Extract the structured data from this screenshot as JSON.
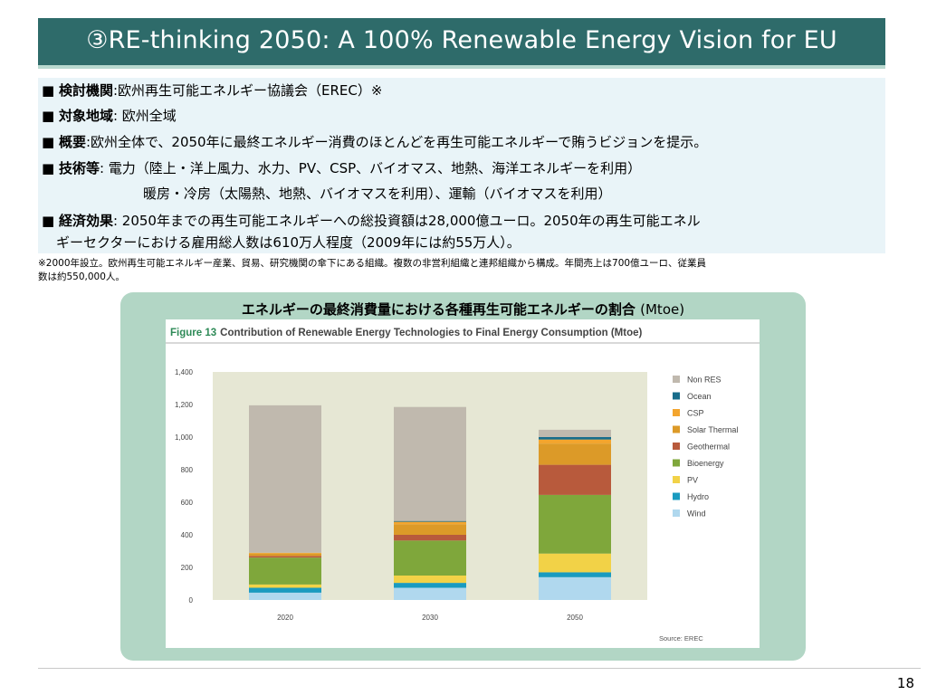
{
  "header": {
    "title": "③RE-thinking 2050:  A 100% Renewable Energy Vision for EU"
  },
  "bullets": [
    {
      "label": "検討機関",
      "sep": ":",
      "text": "欧州再生可能エネルギー協議会（EREC）※"
    },
    {
      "label": "対象地域",
      "sep": ": ",
      "text": "欧州全域"
    },
    {
      "label": "概要",
      "sep": ":",
      "text": "欧州全体で、2050年に最終エネルギー消費のほとんどを再生可能エネルギーで賄うビジョンを提示。"
    },
    {
      "label": "技術等",
      "sep": ": ",
      "text": "電力（陸上・洋上風力、水力、PV、CSP、バイオマス、地熱、海洋エネルギーを利用）",
      "text2": "暖房・冷房（太陽熱、地熱、バイオマスを利用）、運輸（バイオマスを利用）"
    },
    {
      "label": "経済効果",
      "sep": ": ",
      "text": "2050年までの再生可能エネルギーへの総投資額は28,000億ユーロ。2050年の再生可能エネル",
      "text2": "ギーセクターにおける雇用総人数は610万人程度（2009年には約55万人）。"
    }
  ],
  "note": {
    "line1": "※2000年設立。欧州再生可能エネルギー産業、貿易、研究機関の傘下にある組織。複数の非営利組織と連邦組織から構成。年間売上は700億ユーロ、従業員",
    "line2": "数は約550,000人。"
  },
  "chart_heading": {
    "text": "エネルギーの最終消費量における各種再生可能エネルギーの割合 ",
    "unit": "(Mtoe)"
  },
  "chart_data": {
    "type": "bar",
    "stacked": true,
    "figure_label": "Figure 13",
    "title": "Contribution of Renewable Energy Technologies to Final Energy Consumption (Mtoe)",
    "categories": [
      "2020",
      "2030",
      "2050"
    ],
    "ylim": [
      0,
      1400
    ],
    "yticks": [
      "0",
      "200",
      "400",
      "600",
      "800",
      "1,000",
      "1,200",
      "1,400"
    ],
    "series": [
      {
        "name": "Wind",
        "color": "#b0d8ee",
        "values": [
          45,
          75,
          140
        ]
      },
      {
        "name": "Hydro",
        "color": "#1a9bc0",
        "values": [
          30,
          30,
          30
        ]
      },
      {
        "name": "PV",
        "color": "#f2d247",
        "values": [
          20,
          45,
          115
        ]
      },
      {
        "name": "Bioenergy",
        "color": "#7fa73b",
        "values": [
          165,
          215,
          360
        ]
      },
      {
        "name": "Geothermal",
        "color": "#b85a3c",
        "values": [
          10,
          35,
          185
        ]
      },
      {
        "name": "Solar Thermal",
        "color": "#dc9a28",
        "values": [
          15,
          65,
          130
        ]
      },
      {
        "name": "CSP",
        "color": "#f3a52e",
        "values": [
          5,
          15,
          25
        ]
      },
      {
        "name": "Ocean",
        "color": "#186d8b",
        "values": [
          0,
          5,
          15
        ]
      },
      {
        "name": "Non RES",
        "color": "#c0b9ae",
        "values": [
          905,
          700,
          45
        ]
      }
    ],
    "legend_order": [
      "Non RES",
      "Ocean",
      "CSP",
      "Solar Thermal",
      "Geothermal",
      "Bioenergy",
      "PV",
      "Hydro",
      "Wind"
    ],
    "legend_position": "right",
    "grid": false,
    "source": "Source: EREC",
    "colors": {
      "figure_label": "#2e8a57",
      "plot_bg": "#e6e7d4"
    }
  },
  "footer": {
    "page_number": "18"
  }
}
